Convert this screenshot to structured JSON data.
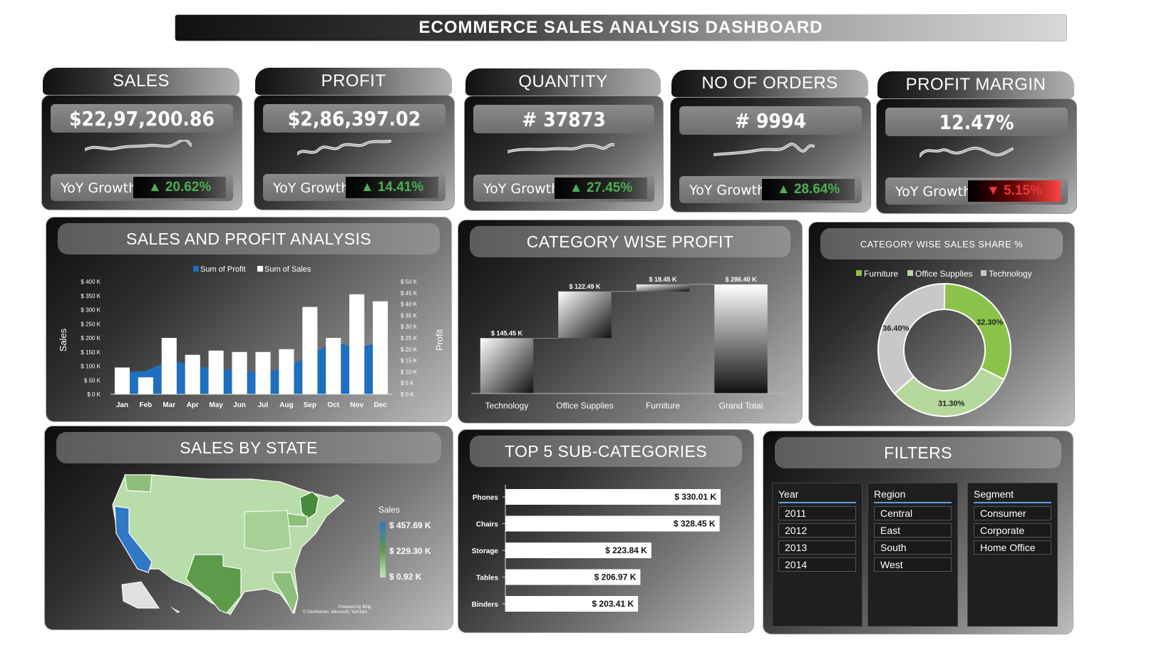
{
  "title": "ECOMMERCE SALES ANALYSIS DASHBOARD",
  "kpis": [
    {
      "label": "SALES",
      "value": "$22,97,200.86",
      "yoy_label": "YoY Growth",
      "yoy": "▲ 20.62%",
      "yoy_color": "#4caf50"
    },
    {
      "label": "PROFIT",
      "value": "$2,86,397.02",
      "yoy_label": "YoY Growth",
      "yoy": "▲ 14.41%",
      "yoy_color": "#4caf50"
    },
    {
      "label": "QUANTITY",
      "value": "# 37873",
      "yoy_label": "YoY Growth",
      "yoy": "▲ 27.45%",
      "yoy_color": "#4caf50"
    },
    {
      "label": "NO OF ORDERS",
      "value": "# 9994",
      "yoy_label": "YoY Growth",
      "yoy": "▲ 28.64%",
      "yoy_color": "#4caf50"
    },
    {
      "label": "PROFIT MARGIN",
      "value": "12.47%",
      "yoy_label": "YoY Growth",
      "yoy": "▼ 5.15%",
      "yoy_color": "#e53935"
    }
  ],
  "panels": {
    "sales_profit": "SALES AND PROFIT ANALYSIS",
    "category_profit": "CATEGORY WISE PROFIT",
    "category_share": "CATEGORY WISE SALES SHARE %",
    "sales_state": "SALES BY STATE",
    "top5": "TOP 5 SUB-CATEGORIES",
    "filters": "FILTERS"
  },
  "chart_data": [
    {
      "type": "bar",
      "categories": [
        "Jan",
        "Feb",
        "Mar",
        "Apr",
        "May",
        "Jun",
        "Jul",
        "Aug",
        "Sep",
        "Oct",
        "Nov",
        "Dec"
      ],
      "series": [
        {
          "name": "Sum of Profit",
          "type": "area",
          "axis": "right",
          "values": [
            9800,
            10300,
            15000,
            13000,
            11000,
            11000,
            9000,
            12300,
            17000,
            23300,
            20600,
            23000
          ]
        },
        {
          "name": "Sum of Sales",
          "type": "bar",
          "axis": "left",
          "values": [
            95000,
            60000,
            200000,
            140000,
            155000,
            150000,
            150000,
            160000,
            310000,
            200000,
            355000,
            330000
          ]
        }
      ],
      "ylabel": "Sales",
      "y2label": "Profit",
      "yticks": [
        "$ 0 K",
        "$ 50 K",
        "$ 100 K",
        "$ 150 K",
        "$ 200 K",
        "$ 250 K",
        "$ 300 K",
        "$ 350 K",
        "$ 400 K"
      ],
      "y2ticks": [
        "$ 0 K",
        "$ 5 K",
        "$ 10 K",
        "$ 15 K",
        "$ 20 K",
        "$ 25 K",
        "$ 30 K",
        "$ 35 K",
        "$ 40 K",
        "$ 45 K",
        "$ 50 K"
      ],
      "ylim": [
        0,
        400000
      ],
      "y2lim": [
        0,
        50000
      ],
      "legend": "top"
    },
    {
      "type": "bar",
      "subtype": "waterfall",
      "categories": [
        "Technology",
        "Office Supplies",
        "Furniture",
        "Grand Total"
      ],
      "values": [
        145.45,
        122.49,
        18.45,
        286.4
      ],
      "labels": [
        "$ 145.45 K",
        "$ 122.49 K",
        "$ 18.45 K",
        "$ 286.40 K"
      ],
      "ylim": [
        0,
        290
      ]
    },
    {
      "type": "pie",
      "subtype": "donut",
      "categories": [
        "Furniture",
        "Office Supplies",
        "Technology"
      ],
      "values": [
        32.3,
        31.3,
        36.4
      ],
      "labels": [
        "32.30%",
        "31.30%",
        "36.40%"
      ],
      "colors": [
        "#8bc34a",
        "#b5d99c",
        "#c8c8c8"
      ],
      "legend": "top"
    },
    {
      "type": "bar",
      "orientation": "horizontal",
      "categories": [
        "Phones",
        "Chairs",
        "Storage",
        "Tables",
        "Binders"
      ],
      "values": [
        330.01,
        328.45,
        223.84,
        206.97,
        203.41
      ],
      "labels": [
        "$ 330.01 K",
        "$ 328.45 K",
        "$ 223.84 K",
        "$ 206.97 K",
        "$ 203.41 K"
      ],
      "xlim": [
        0,
        330.01
      ]
    }
  ],
  "map": {
    "legend_title": "Sales",
    "legend_values": [
      "$ 457.69 K",
      "$ 229.30 K",
      "$ 0.92 K"
    ],
    "credit1": "Powered by Bing",
    "credit2": "© GeoNames, Microsoft, TomTom"
  },
  "filters": {
    "year": {
      "title": "Year",
      "items": [
        "2011",
        "2012",
        "2013",
        "2014"
      ]
    },
    "region": {
      "title": "Region",
      "items": [
        "Central",
        "East",
        "South",
        "West"
      ]
    },
    "segment": {
      "title": "Segment",
      "items": [
        "Consumer",
        "Corporate",
        "Home Office"
      ]
    }
  }
}
